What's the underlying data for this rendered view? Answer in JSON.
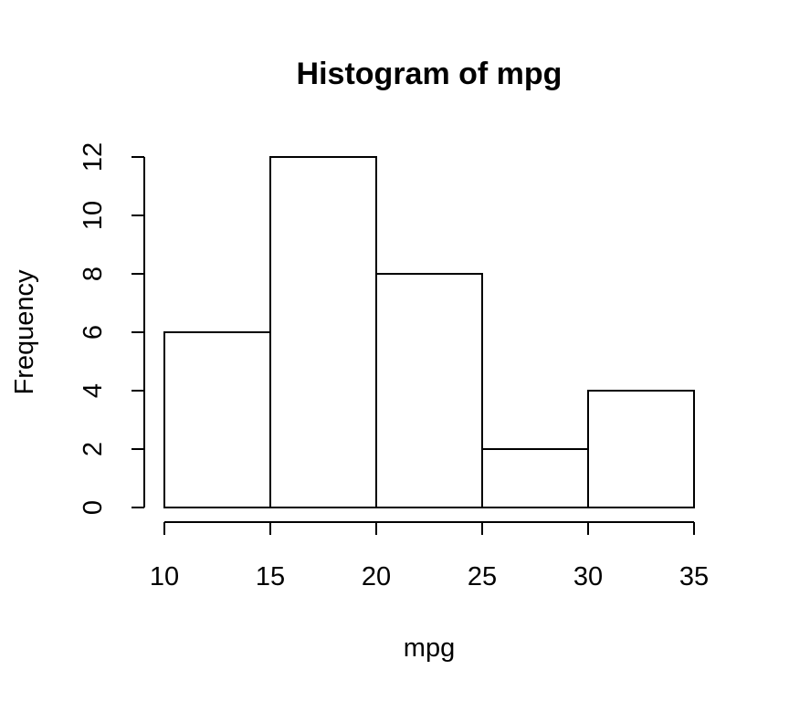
{
  "chart_data": {
    "type": "bar",
    "title": "Histogram of mpg",
    "xlabel": "mpg",
    "ylabel": "Frequency",
    "bins": [
      {
        "from": 10,
        "to": 15,
        "count": 6
      },
      {
        "from": 15,
        "to": 20,
        "count": 12
      },
      {
        "from": 20,
        "to": 25,
        "count": 8
      },
      {
        "from": 25,
        "to": 30,
        "count": 2
      },
      {
        "from": 30,
        "to": 35,
        "count": 4
      }
    ],
    "xlim": [
      10,
      35
    ],
    "ylim": [
      0,
      12
    ],
    "x_ticks": [
      "10",
      "15",
      "20",
      "25",
      "30",
      "35"
    ],
    "y_ticks": [
      "0",
      "2",
      "4",
      "6",
      "8",
      "10",
      "12"
    ],
    "grid": false,
    "legend": "none",
    "colors": {
      "bar_fill": "#ffffff",
      "bar_stroke": "#000000"
    }
  }
}
